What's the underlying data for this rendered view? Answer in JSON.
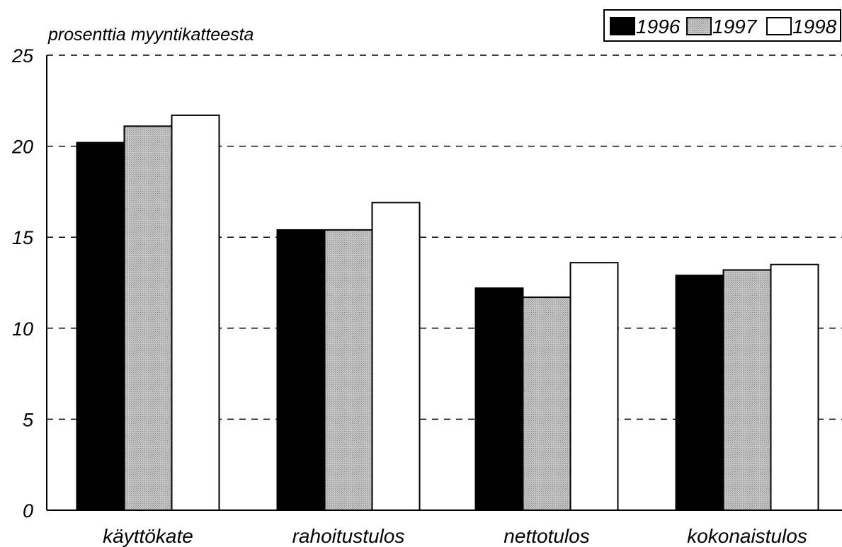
{
  "chart_data": {
    "type": "bar",
    "title": "",
    "ylabel": "prosenttia myyntikatteesta",
    "xlabel": "",
    "ylim": [
      0,
      25
    ],
    "yticks": [
      0,
      5,
      10,
      15,
      20,
      25
    ],
    "grid": "dashed horizontal",
    "legend_position": "top-right",
    "categories": [
      "käyttökate",
      "rahoitustulos",
      "nettotulos",
      "kokonaistulos"
    ],
    "series": [
      {
        "name": "1996",
        "values": [
          20.2,
          15.4,
          12.2,
          12.9
        ],
        "fill": "#000000"
      },
      {
        "name": "1997",
        "values": [
          21.1,
          15.4,
          11.7,
          13.2
        ],
        "fill": "#b8b8b8"
      },
      {
        "name": "1998",
        "values": [
          21.7,
          16.9,
          13.6,
          13.5
        ],
        "fill": "#ffffff"
      }
    ]
  }
}
